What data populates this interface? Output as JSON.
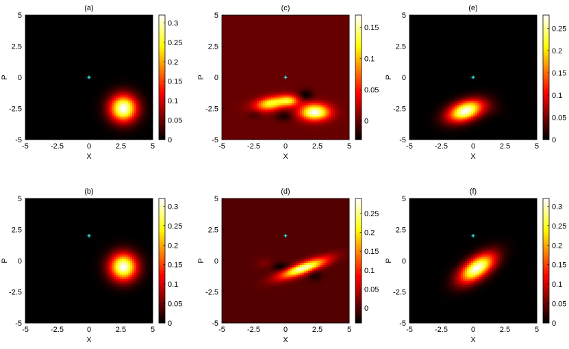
{
  "chart_data": [
    {
      "type": "heatmap",
      "title": "(a)",
      "xlabel": "X",
      "ylabel": "P",
      "xlim": [
        -5,
        5
      ],
      "ylim": [
        -5,
        5
      ],
      "xticks": [
        "-5",
        "-2.5",
        "0",
        "2.5",
        "5"
      ],
      "yticks": [
        "-5",
        "-2.5",
        "0",
        "2.5",
        "5"
      ],
      "colorbar": {
        "range": [
          0,
          0.32
        ],
        "ticks": [
          "0",
          "0.05",
          "0.1",
          "0.15",
          "0.2",
          "0.25",
          "0.3"
        ]
      },
      "background_value": 0.0,
      "marker": {
        "x": 0,
        "y": 0,
        "color": "#29e3e3"
      },
      "blobs": [
        {
          "x": 2.7,
          "y": -2.5,
          "sx": 0.75,
          "sy": 0.75,
          "rho": 0,
          "amp": 0.32
        }
      ],
      "colormap": "hot"
    },
    {
      "type": "heatmap",
      "title": "(c)",
      "xlabel": "X",
      "ylabel": "P",
      "xlim": [
        -5,
        5
      ],
      "ylim": [
        -5,
        5
      ],
      "xticks": [
        "-5",
        "-2.5",
        "0",
        "2.5",
        "5"
      ],
      "yticks": [
        "-5",
        "-2.5",
        "0",
        "2.5",
        "5"
      ],
      "colorbar": {
        "range": [
          -0.03,
          0.17
        ],
        "ticks": [
          "0",
          "0.05",
          "0.1",
          "0.15"
        ]
      },
      "background_value": 0.0,
      "marker": {
        "x": 0,
        "y": 0,
        "color": "#29e3e3"
      },
      "blobs": [
        {
          "x": 2.3,
          "y": -2.8,
          "sx": 0.8,
          "sy": 0.45,
          "rho": 0,
          "amp": 0.17
        },
        {
          "x": -1.1,
          "y": -2.1,
          "sx": 0.9,
          "sy": 0.4,
          "rho": 0.35,
          "amp": 0.13
        },
        {
          "x": 0.3,
          "y": -1.9,
          "sx": 0.5,
          "sy": 0.3,
          "rho": 0,
          "amp": 0.09
        },
        {
          "x": 1.6,
          "y": -1.4,
          "sx": 0.4,
          "sy": 0.3,
          "rho": 0,
          "amp": -0.03
        },
        {
          "x": -0.1,
          "y": -3.1,
          "sx": 0.45,
          "sy": 0.3,
          "rho": 0,
          "amp": -0.025
        },
        {
          "x": -2.4,
          "y": -2.9,
          "sx": 0.4,
          "sy": 0.3,
          "rho": 0,
          "amp": -0.015
        }
      ],
      "colormap": "hot"
    },
    {
      "type": "heatmap",
      "title": "(e)",
      "xlabel": "X",
      "ylabel": "P",
      "xlim": [
        -5,
        5
      ],
      "ylim": [
        -5,
        5
      ],
      "xticks": [
        "-5",
        "-2.5",
        "0",
        "2.5",
        "5"
      ],
      "yticks": [
        "-5",
        "-2.5",
        "0",
        "2.5",
        "5"
      ],
      "colorbar": {
        "range": [
          0,
          0.28
        ],
        "ticks": [
          "0",
          "0.05",
          "0.1",
          "0.15",
          "0.2",
          "0.25"
        ]
      },
      "background_value": 0.0,
      "marker": {
        "x": 0,
        "y": 0,
        "color": "#29e3e3"
      },
      "blobs": [
        {
          "x": -0.6,
          "y": -2.7,
          "sx": 0.95,
          "sy": 0.6,
          "rho": 0.4,
          "amp": 0.28
        },
        {
          "x": 1.4,
          "y": -2.5,
          "sx": 0.7,
          "sy": 0.4,
          "rho": -0.2,
          "amp": 0.012
        }
      ],
      "colormap": "hot"
    },
    {
      "type": "heatmap",
      "title": "(b)",
      "xlabel": "X",
      "ylabel": "P",
      "xlim": [
        -5,
        5
      ],
      "ylim": [
        -5,
        5
      ],
      "xticks": [
        "-5",
        "-2.5",
        "0",
        "2.5",
        "5"
      ],
      "yticks": [
        "-5",
        "-2.5",
        "0",
        "2.5",
        "5"
      ],
      "colorbar": {
        "range": [
          0,
          0.32
        ],
        "ticks": [
          "0",
          "0.05",
          "0.1",
          "0.15",
          "0.2",
          "0.25",
          "0.3"
        ]
      },
      "background_value": 0.0,
      "marker": {
        "x": 0,
        "y": 2,
        "color": "#29e3e3"
      },
      "blobs": [
        {
          "x": 2.7,
          "y": -0.5,
          "sx": 0.75,
          "sy": 0.75,
          "rho": 0,
          "amp": 0.32
        }
      ],
      "colormap": "hot"
    },
    {
      "type": "heatmap",
      "title": "(d)",
      "xlabel": "X",
      "ylabel": "P",
      "xlim": [
        -5,
        5
      ],
      "ylim": [
        -5,
        5
      ],
      "xticks": [
        "-5",
        "-2.5",
        "0",
        "2.5",
        "5"
      ],
      "yticks": [
        "-5",
        "-2.5",
        "0",
        "2.5",
        "5"
      ],
      "colorbar": {
        "range": [
          -0.04,
          0.29
        ],
        "ticks": [
          "0",
          "0.05",
          "0.1",
          "0.15",
          "0.2",
          "0.25"
        ]
      },
      "background_value": 0.0,
      "marker": {
        "x": 0,
        "y": 2,
        "color": "#29e3e3"
      },
      "blobs": [
        {
          "x": 1.4,
          "y": -0.6,
          "sx": 1.25,
          "sy": 0.55,
          "rho": 0.8,
          "amp": 0.28
        },
        {
          "x": -0.3,
          "y": -0.5,
          "sx": 0.5,
          "sy": 0.25,
          "rho": 0,
          "amp": -0.045
        },
        {
          "x": 2.3,
          "y": -1.2,
          "sx": 0.4,
          "sy": 0.3,
          "rho": 0,
          "amp": -0.03
        },
        {
          "x": -1.6,
          "y": -0.2,
          "sx": 0.5,
          "sy": 0.3,
          "rho": 0,
          "amp": 0.02
        }
      ],
      "colormap": "hot"
    },
    {
      "type": "heatmap",
      "title": "(f)",
      "xlabel": "X",
      "ylabel": "P",
      "xlim": [
        -5,
        5
      ],
      "ylim": [
        -5,
        5
      ],
      "xticks": [
        "-5",
        "-2.5",
        "0",
        "2.5",
        "5"
      ],
      "yticks": [
        "-5",
        "-2.5",
        "0",
        "2.5",
        "5"
      ],
      "colorbar": {
        "range": [
          0,
          0.32
        ],
        "ticks": [
          "0",
          "0.05",
          "0.1",
          "0.15",
          "0.2",
          "0.25",
          "0.3"
        ]
      },
      "background_value": 0.0,
      "marker": {
        "x": 0,
        "y": 2,
        "color": "#29e3e3"
      },
      "blobs": [
        {
          "x": 0.3,
          "y": -0.6,
          "sx": 0.95,
          "sy": 0.8,
          "rho": 0.6,
          "amp": 0.32
        }
      ],
      "colormap": "hot"
    }
  ]
}
